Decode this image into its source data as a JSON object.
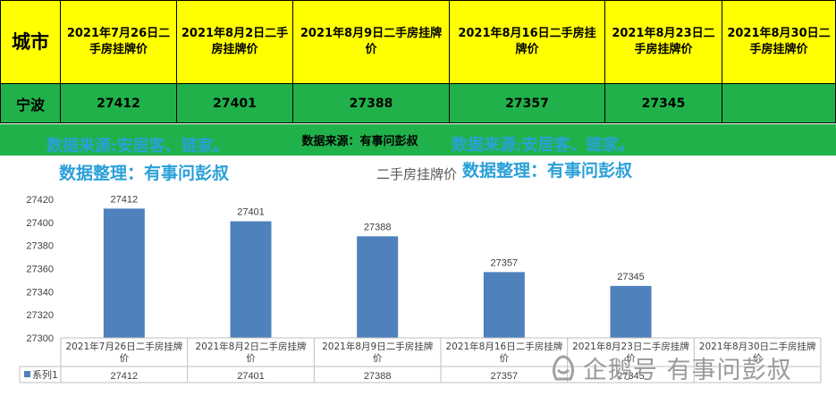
{
  "table": {
    "header_city": "城市",
    "header_dates": [
      "2021年7月26日二手房挂牌价",
      "2021年8月2日二手房挂牌价",
      "2021年8月9日二手房挂牌价",
      "2021年8月16日二手房挂牌价",
      "2021年8月23日二手房挂牌价",
      "2021年8月30日二手房挂牌价"
    ],
    "city": "宁波",
    "values": [
      "27412",
      "27401",
      "27388",
      "27357",
      "27345",
      ""
    ]
  },
  "source_note": "数据来源：有事问彭叔",
  "watermarks": {
    "source_left": "数据来源:安居客、链家。",
    "source_right": "数据来源:安居客、链家。",
    "organize_left": "数据整理：有事问彭叔",
    "organize_right": "数据整理：有事问彭叔"
  },
  "brand_text": "企鹅号 有事问彭叔",
  "chart_data": {
    "type": "bar",
    "title": "二手房挂牌价",
    "categories": [
      "2021年7月26日二手房挂牌价",
      "2021年8月2日二手房挂牌价",
      "2021年8月9日二手房挂牌价",
      "2021年8月16日二手房挂牌价",
      "2021年8月23日二手房挂牌价",
      "2021年8月30日二手房挂牌价"
    ],
    "series": [
      {
        "name": "系列1",
        "values": [
          27412,
          27401,
          27388,
          27357,
          27345,
          null
        ]
      }
    ],
    "ylim": [
      27300,
      27420
    ],
    "yticks": [
      27300,
      27320,
      27340,
      27360,
      27380,
      27400,
      27420
    ],
    "grid": false,
    "data_table": true,
    "bar_color": "#4f81bd"
  }
}
